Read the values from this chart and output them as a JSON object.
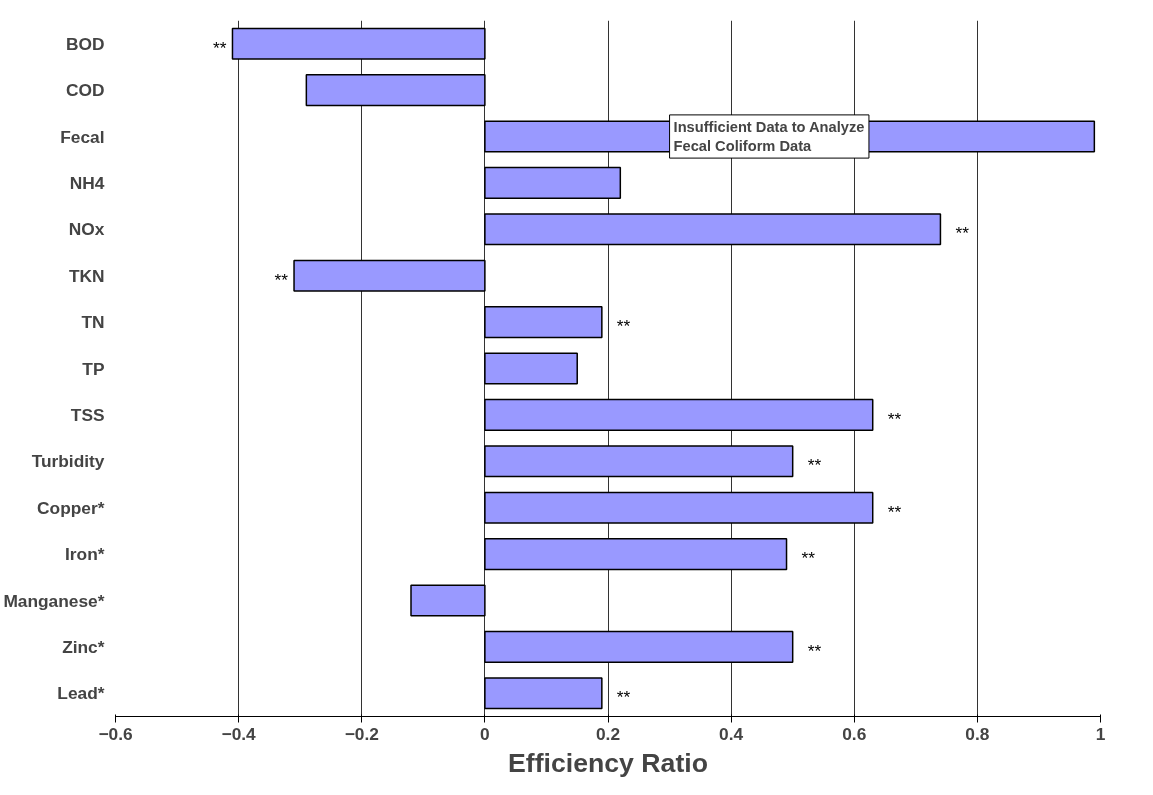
{
  "chart_data": {
    "type": "bar",
    "orientation": "horizontal",
    "xlabel": "Efficiency Ratio",
    "categories": [
      "BOD",
      "COD",
      "Fecal",
      "NH4",
      "NOx",
      "TKN",
      "TN",
      "TP",
      "TSS",
      "Turbidity",
      "Copper*",
      "Iron*",
      "Manganese*",
      "Zinc*",
      "Lead*"
    ],
    "values": [
      -0.41,
      -0.29,
      0.99,
      0.22,
      0.74,
      -0.31,
      0.19,
      0.15,
      0.63,
      0.5,
      0.63,
      0.49,
      -0.12,
      0.5,
      0.19
    ],
    "value_labels": [
      "**",
      null,
      null,
      null,
      "**",
      "**",
      "**",
      null,
      "**",
      "**",
      "**",
      "**",
      null,
      "**",
      "**"
    ],
    "color": "#9999ff",
    "xlim": [
      -0.6,
      1
    ],
    "xticks": [
      -0.6,
      -0.4,
      -0.2,
      0,
      0.2,
      0.4,
      0.6,
      0.8,
      1
    ],
    "grid": "x",
    "annotations": [
      {
        "text": "Insufficient Data to Analyze\nFecal Coliform Data",
        "x": 0.3,
        "y": "Fecal"
      }
    ]
  }
}
